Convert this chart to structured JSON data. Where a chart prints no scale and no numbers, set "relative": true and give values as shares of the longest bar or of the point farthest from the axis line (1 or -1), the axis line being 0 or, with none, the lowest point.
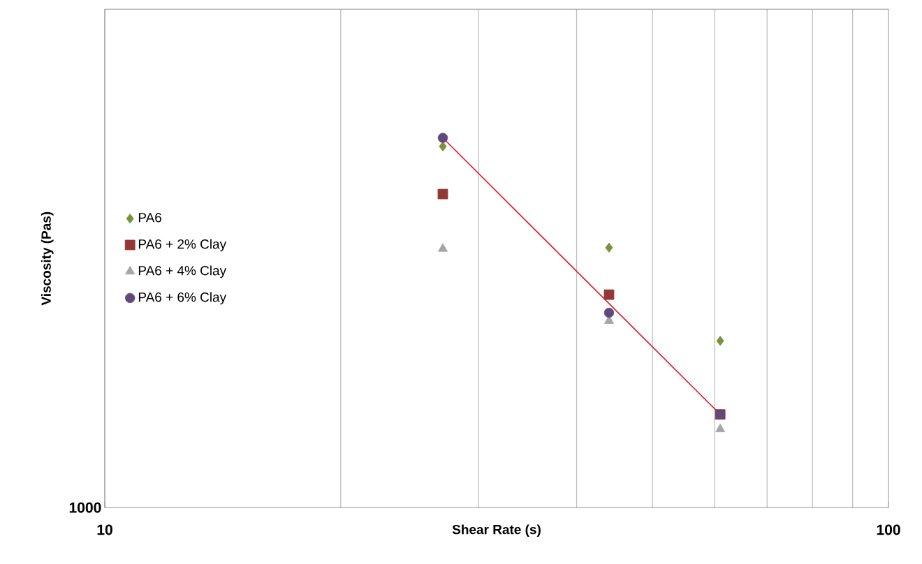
{
  "chart_data": {
    "type": "scatter",
    "xlabel": "Shear Rate (s)",
    "ylabel": "Viscosity (Pas)",
    "log": "x",
    "xlim": [
      10,
      100
    ],
    "xticks": [
      10,
      100
    ],
    "relative": true,
    "tick_labels": "x",
    "annotations": [
      "1000"
    ],
    "grid": "x",
    "legend": "left",
    "series": [
      {
        "name": "PA6",
        "color": "#77933c",
        "marker": "diamond",
        "x": [
          27,
          44,
          61
        ],
        "values": [
          0.977,
          0.703,
          0.451
        ]
      },
      {
        "name": "PA6 + 2% Clay",
        "color": "#953735",
        "marker": "square",
        "x": [
          27,
          44,
          61
        ],
        "values": [
          0.848,
          0.576,
          0.252
        ]
      },
      {
        "name": "PA6 + 4% Clay",
        "color": "#a6a6a6",
        "marker": "triangle",
        "x": [
          27,
          44,
          61
        ],
        "values": [
          0.7,
          0.505,
          0.212
        ]
      },
      {
        "name": "PA6 + 6% Clay",
        "color": "#604a7b",
        "marker": "circle",
        "x": [
          27,
          44,
          61
        ],
        "values": [
          1,
          0.527,
          0.252
        ]
      },
      {
        "type": "line",
        "color": "#e0202a",
        "marker": "none",
        "x": [
          27,
          61
        ],
        "values": [
          1,
          0.252
        ]
      }
    ]
  }
}
